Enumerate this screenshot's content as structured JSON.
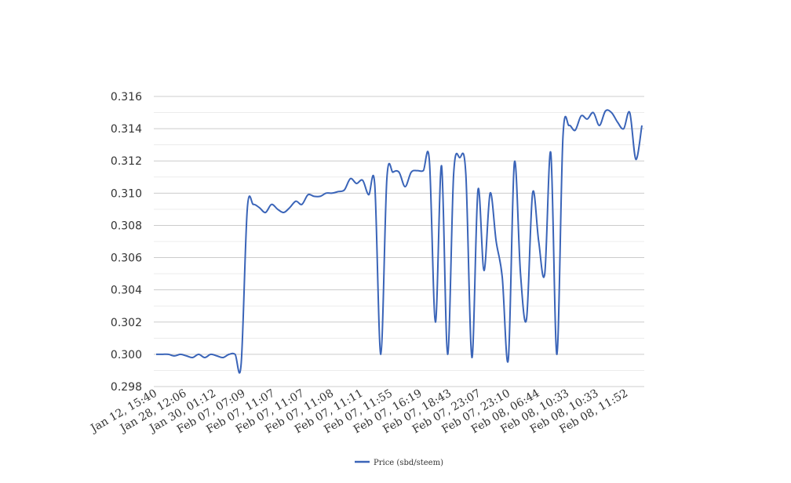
{
  "chart_data": {
    "type": "line",
    "title": "",
    "xlabel": "",
    "ylabel": "",
    "ylim": [
      0.298,
      0.316
    ],
    "y_ticks": [
      "0.298",
      "0.300",
      "0.302",
      "0.304",
      "0.306",
      "0.308",
      "0.310",
      "0.312",
      "0.314",
      "0.316"
    ],
    "x_ticks": [
      "Jan 12, 15:40",
      "Jan 28, 12:06",
      "Jan 30, 01:12",
      "Feb 07, 07:09",
      "Feb 07, 11:07",
      "Feb 07, 11:07",
      "Feb 07, 11:08",
      "Feb 07, 11:11",
      "Feb 07, 11:55",
      "Feb 07, 16:19",
      "Feb 07, 18:43",
      "Feb 07, 23:07",
      "Feb 07, 23:10",
      "Feb 08, 06:44",
      "Feb 08, 10:33",
      "Feb 08, 10:33",
      "Feb 08, 11:52"
    ],
    "grid": true,
    "legend_position": "bottom",
    "line_color": "#3a64b8",
    "series": [
      {
        "name": "Price (sbd/steem)",
        "values": [
          0.3,
          0.3,
          0.3,
          0.2999,
          0.3,
          0.2999,
          0.2998,
          0.3,
          0.2998,
          0.3,
          0.2999,
          0.2998,
          0.3,
          0.3,
          0.2994,
          0.309,
          0.3093,
          0.3091,
          0.3088,
          0.3093,
          0.309,
          0.3088,
          0.3091,
          0.3095,
          0.3093,
          0.3099,
          0.3098,
          0.3098,
          0.31,
          0.31,
          0.3101,
          0.3102,
          0.3109,
          0.3106,
          0.3108,
          0.3099,
          0.3105,
          0.3,
          0.3109,
          0.3113,
          0.3113,
          0.3104,
          0.3113,
          0.3114,
          0.3114,
          0.312,
          0.302,
          0.3117,
          0.3,
          0.3112,
          0.3122,
          0.3112,
          0.2998,
          0.3102,
          0.3052,
          0.31,
          0.307,
          0.3048,
          0.2997,
          0.3119,
          0.305,
          0.3022,
          0.31,
          0.307,
          0.305,
          0.3125,
          0.3,
          0.3135,
          0.3142,
          0.3139,
          0.3148,
          0.3146,
          0.315,
          0.3142,
          0.3151,
          0.315,
          0.3144,
          0.314,
          0.315,
          0.3121,
          0.3142
        ]
      }
    ]
  }
}
